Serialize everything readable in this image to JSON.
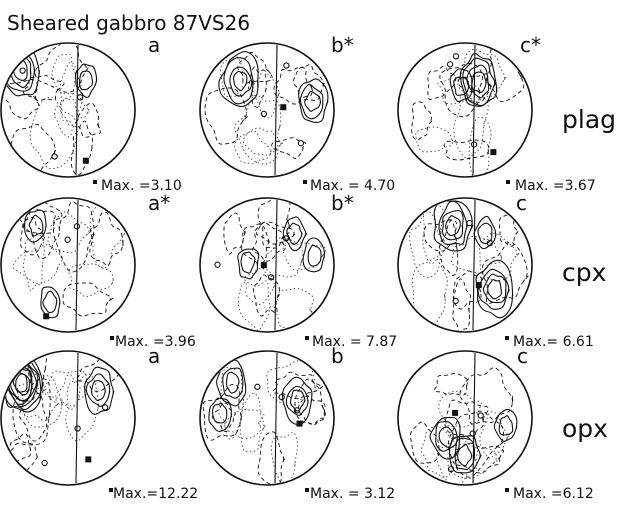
{
  "title": "Sheared gabbro 87VS26",
  "rows": [
    {
      "mineral": "plag",
      "panels": [
        {
          "letter": "a",
          "max": "Max. =3.10"
        },
        {
          "letter": "b*",
          "max": "Max. = 4.70"
        },
        {
          "letter": "c*",
          "max": "Max. =3.67"
        }
      ]
    },
    {
      "mineral": "cpx",
      "panels": [
        {
          "letter": "a*",
          "max": "Max. =3.96"
        },
        {
          "letter": "b*",
          "max": "Max. = 7.87"
        },
        {
          "letter": "c",
          "max": "Max.= 6.61"
        }
      ]
    },
    {
      "mineral": "opx",
      "panels": [
        {
          "letter": "a",
          "max": "Max.=12.22"
        },
        {
          "letter": "b",
          "max": "Max. = 3.12"
        },
        {
          "letter": "c",
          "max": "Max. =6.12"
        }
      ]
    }
  ]
}
